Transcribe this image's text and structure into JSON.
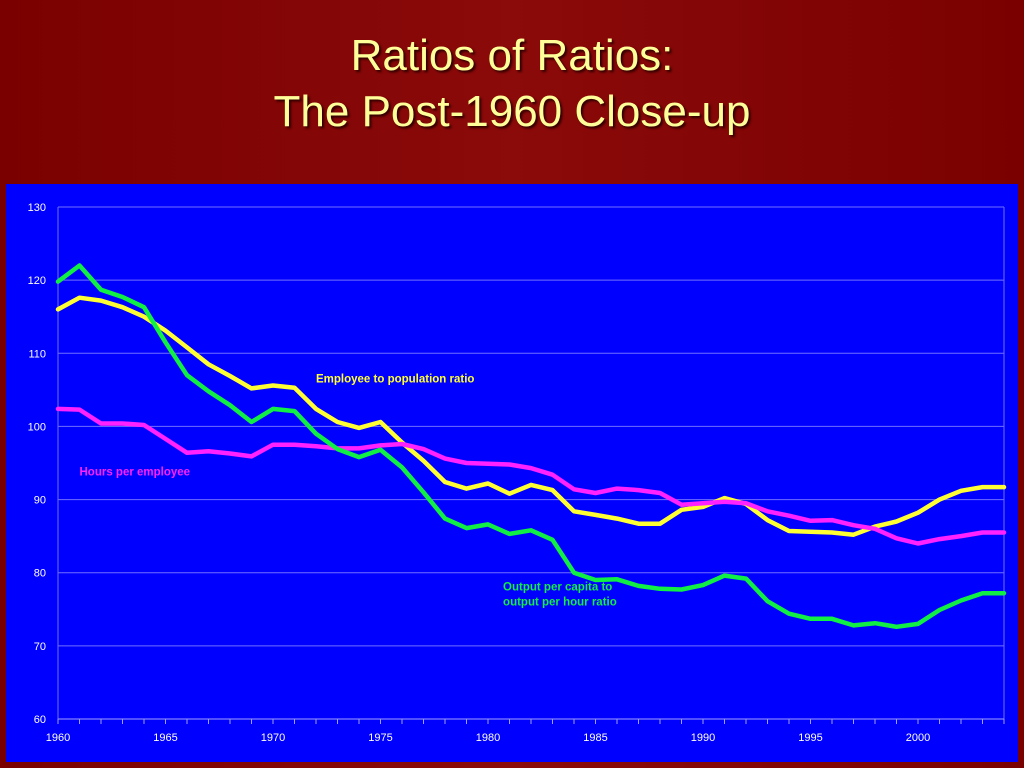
{
  "slide": {
    "title_line1": "Ratios of Ratios:",
    "title_line2": "The Post-1960 Close-up"
  },
  "colors": {
    "slide_background": "#7a0000",
    "title_text": "#ffff99",
    "chart_background": "#0000ff",
    "grid": "#6f6fff",
    "axis_text": "#ffffff"
  },
  "chart_data": {
    "type": "line",
    "title": "",
    "xlabel": "",
    "ylabel": "",
    "xlim": [
      1960,
      2004
    ],
    "ylim": [
      60,
      130
    ],
    "x_ticks": [
      1960,
      1965,
      1970,
      1975,
      1980,
      1985,
      1990,
      1995,
      2000
    ],
    "y_ticks": [
      60,
      70,
      80,
      90,
      100,
      110,
      120,
      130
    ],
    "grid": true,
    "x": [
      1960,
      1961,
      1962,
      1963,
      1964,
      1965,
      1966,
      1967,
      1968,
      1969,
      1970,
      1971,
      1972,
      1973,
      1974,
      1975,
      1976,
      1977,
      1978,
      1979,
      1980,
      1981,
      1982,
      1983,
      1984,
      1985,
      1986,
      1987,
      1988,
      1989,
      1990,
      1991,
      1992,
      1993,
      1994,
      1995,
      1996,
      1997,
      1998,
      1999,
      2000,
      2001,
      2002,
      2003,
      2004
    ],
    "series": [
      {
        "name": "Employee to population ratio",
        "color": "#ffff33",
        "values": [
          116.0,
          117.6,
          117.2,
          116.3,
          115.0,
          113.1,
          110.8,
          108.5,
          106.9,
          105.2,
          105.6,
          105.3,
          102.4,
          100.6,
          99.8,
          100.6,
          97.8,
          95.3,
          92.4,
          91.5,
          92.2,
          90.8,
          92.0,
          91.3,
          88.4,
          87.9,
          87.4,
          86.7,
          86.7,
          88.6,
          89.0,
          90.2,
          89.4,
          87.2,
          85.7,
          85.6,
          85.5,
          85.2,
          86.3,
          87.0,
          88.2,
          90.0,
          91.2,
          91.7,
          91.7
        ],
        "label_text": "Employee to population ratio",
        "label_x": 1972.0,
        "label_y": 106.0
      },
      {
        "name": "Hours per employee",
        "color": "#ff22ff",
        "values": [
          102.4,
          102.3,
          100.4,
          100.4,
          100.2,
          98.3,
          96.4,
          96.6,
          96.3,
          95.9,
          97.5,
          97.5,
          97.3,
          97.0,
          97.0,
          97.4,
          97.6,
          96.9,
          95.6,
          95.0,
          94.9,
          94.8,
          94.3,
          93.4,
          91.4,
          90.9,
          91.5,
          91.3,
          90.9,
          89.3,
          89.5,
          89.7,
          89.5,
          88.4,
          87.8,
          87.1,
          87.2,
          86.5,
          86.0,
          84.7,
          84.0,
          84.6,
          85.0,
          85.5,
          85.5
        ],
        "label_text": "Hours per employee",
        "label_x": 1961.0,
        "label_y": 93.3
      },
      {
        "name": "Output per capita to output per hour ratio",
        "color": "#11ee44",
        "values": [
          119.8,
          122.0,
          118.7,
          117.7,
          116.3,
          111.5,
          107.0,
          104.8,
          102.9,
          100.6,
          102.4,
          102.1,
          99.0,
          96.9,
          95.8,
          96.8,
          94.4,
          91.0,
          87.4,
          86.1,
          86.6,
          85.3,
          85.8,
          84.5,
          80.0,
          79.0,
          79.1,
          78.2,
          77.8,
          77.7,
          78.3,
          79.6,
          79.2,
          76.1,
          74.4,
          73.7,
          73.7,
          72.8,
          73.1,
          72.6,
          73.0,
          74.9,
          76.2,
          77.2,
          77.2
        ],
        "label_text": [
          "Output per capita to",
          "output per hour ratio"
        ],
        "label_x": 1980.7,
        "label_y": 77.6
      }
    ]
  }
}
